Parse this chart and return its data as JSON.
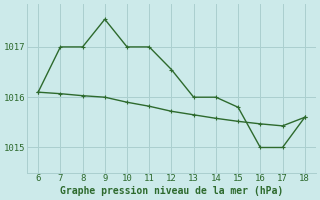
{
  "line1_x": [
    6,
    7,
    8,
    9,
    10,
    11,
    12,
    13,
    14,
    15,
    16,
    17,
    18
  ],
  "line1_y": [
    1016.1,
    1017.0,
    1017.0,
    1017.55,
    1017.0,
    1017.0,
    1016.55,
    1016.0,
    1016.0,
    1015.8,
    1015.0,
    1015.0,
    1015.6
  ],
  "line2_x": [
    6,
    7,
    8,
    9,
    10,
    11,
    12,
    13,
    14,
    15,
    16,
    17,
    18
  ],
  "line2_y": [
    1016.1,
    1016.07,
    1016.03,
    1016.0,
    1015.9,
    1015.82,
    1015.72,
    1015.65,
    1015.58,
    1015.52,
    1015.47,
    1015.43,
    1015.6
  ],
  "color": "#2d6a2d",
  "background_color": "#cceaea",
  "grid_color": "#aacfcf",
  "xlabel": "Graphe pression niveau de la mer (hPa)",
  "xlim": [
    5.5,
    18.5
  ],
  "ylim": [
    1014.5,
    1017.85
  ],
  "yticks": [
    1015,
    1016,
    1017
  ],
  "xticks": [
    6,
    7,
    8,
    9,
    10,
    11,
    12,
    13,
    14,
    15,
    16,
    17,
    18
  ],
  "xlabel_fontsize": 7,
  "tick_fontsize": 6.5,
  "marker_size": 3,
  "linewidth": 1.0
}
